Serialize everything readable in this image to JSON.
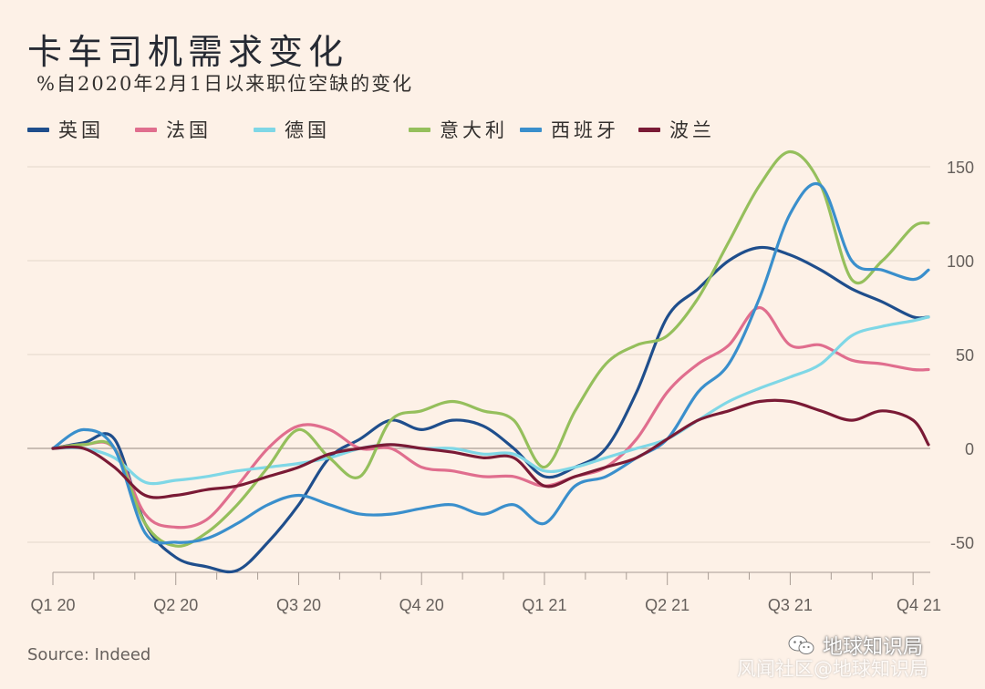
{
  "title": "卡车司机需求变化",
  "subtitle": "%自2020年2月1日以来职位空缺的变化",
  "source": "Source: Indeed",
  "watermark": {
    "main": "地球知识局",
    "secondary": "风闻社区@地球知识局"
  },
  "chart_data": {
    "type": "line",
    "ylim": [
      -65,
      160
    ],
    "y_ticks": [
      -50,
      0,
      50,
      100,
      150
    ],
    "x_ticks": [
      "Q1 20",
      "Q2 20",
      "Q3 20",
      "Q4 20",
      "Q1 21",
      "Q2 21",
      "Q3 21",
      "Q4 21"
    ],
    "grid": true,
    "y_axis_side": "right",
    "legend_position": "top",
    "x": [
      0,
      0.25,
      0.5,
      0.75,
      1,
      1.25,
      1.5,
      1.75,
      2,
      2.25,
      2.5,
      2.75,
      3,
      3.25,
      3.5,
      3.75,
      4,
      4.25,
      4.5,
      4.75,
      5,
      5.25,
      5.5,
      5.75,
      6,
      6.25,
      6.5,
      6.75,
      7,
      7.125
    ],
    "series": [
      {
        "name": "英国",
        "color": "#1f4e8c",
        "values": [
          0,
          3,
          5,
          -40,
          -58,
          -63,
          -65,
          -50,
          -30,
          -5,
          5,
          15,
          10,
          15,
          12,
          0,
          -15,
          -10,
          0,
          30,
          70,
          85,
          100,
          107,
          103,
          95,
          85,
          78,
          70,
          70
        ]
      },
      {
        "name": "法国",
        "color": "#e06e8e",
        "values": [
          0,
          2,
          0,
          -35,
          -42,
          -38,
          -20,
          0,
          12,
          10,
          0,
          0,
          -10,
          -12,
          -15,
          -15,
          -20,
          -15,
          -10,
          5,
          30,
          45,
          55,
          75,
          55,
          55,
          47,
          45,
          42,
          42
        ]
      },
      {
        "name": "德国",
        "color": "#7fd7e6",
        "values": [
          0,
          0,
          -5,
          -18,
          -17,
          -15,
          -12,
          -10,
          -8,
          -5,
          0,
          2,
          0,
          0,
          -3,
          -3,
          -12,
          -10,
          -5,
          0,
          5,
          15,
          25,
          32,
          38,
          45,
          60,
          65,
          68,
          70
        ]
      },
      {
        "name": "意大利",
        "color": "#95bf5c",
        "values": [
          0,
          2,
          0,
          -40,
          -52,
          -45,
          -30,
          -10,
          10,
          -5,
          -15,
          15,
          20,
          25,
          20,
          15,
          -10,
          20,
          45,
          55,
          60,
          80,
          110,
          140,
          158,
          140,
          90,
          100,
          118,
          120
        ]
      },
      {
        "name": "西班牙",
        "color": "#3a8fcc",
        "values": [
          0,
          10,
          0,
          -45,
          -50,
          -48,
          -40,
          -30,
          -25,
          -30,
          -35,
          -35,
          -32,
          -30,
          -35,
          -30,
          -40,
          -20,
          -15,
          -5,
          5,
          30,
          45,
          80,
          125,
          140,
          100,
          95,
          90,
          95
        ]
      },
      {
        "name": "波兰",
        "color": "#7a1a35",
        "values": [
          0,
          0,
          -10,
          -25,
          -25,
          -22,
          -20,
          -15,
          -10,
          -3,
          0,
          2,
          0,
          -2,
          -5,
          -5,
          -20,
          -15,
          -10,
          -5,
          5,
          15,
          20,
          25,
          25,
          20,
          15,
          20,
          15,
          2
        ]
      }
    ]
  }
}
